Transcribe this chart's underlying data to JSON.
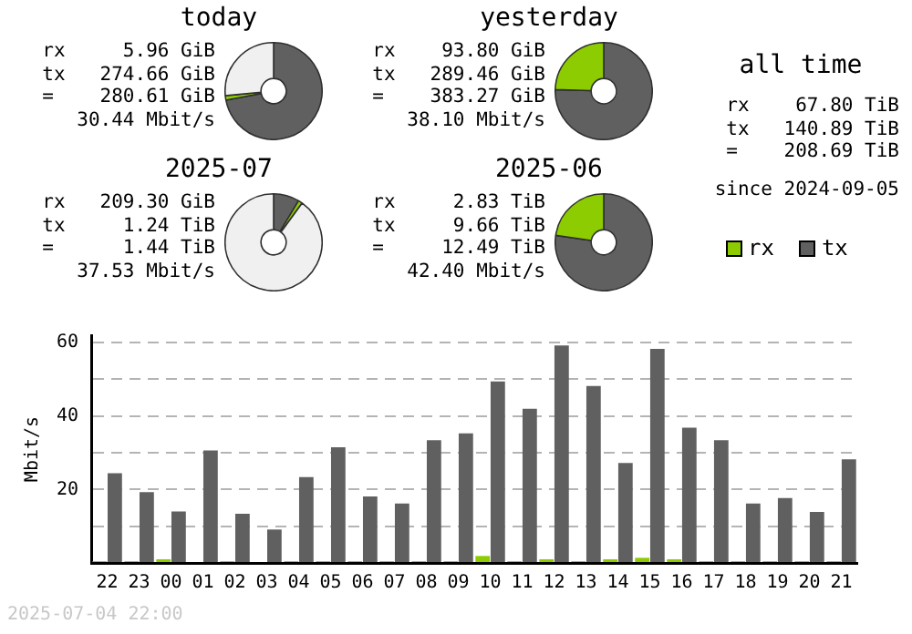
{
  "chart_data": [
    {
      "type": "donut",
      "title": "today",
      "categories": [
        null,
        null,
        null
      ],
      "values": [
        72.0,
        1.5,
        26.5
      ],
      "colors": [
        "#606060",
        "#8ccc00",
        "#f0f0f0"
      ],
      "annotations": [
        "rx     5.96 GiB",
        "tx   274.66 GiB",
        "=    280.61 GiB",
        "30.44 Mbit/s"
      ]
    },
    {
      "type": "donut",
      "title": "yesterday",
      "categories": [
        null,
        null,
        null
      ],
      "values": [
        75.5,
        24.5,
        0
      ],
      "colors": [
        "#606060",
        "#8ccc00",
        "#f0f0f0"
      ],
      "annotations": [
        "rx    93.80 GiB",
        "tx   289.46 GiB",
        "=    383.27 GiB",
        "38.10 Mbit/s"
      ]
    },
    {
      "type": "donut",
      "title": "2025-07",
      "categories": [
        null,
        null,
        null
      ],
      "values": [
        8.6,
        1.4,
        90
      ],
      "colors": [
        "#606060",
        "#8ccc00",
        "#f0f0f0"
      ],
      "annotations": [
        "rx   209.30 GiB",
        "tx     1.24 TiB",
        "=      1.44 TiB",
        "37.53 Mbit/s"
      ]
    },
    {
      "type": "donut",
      "title": "2025-06",
      "categories": [
        null,
        null,
        null
      ],
      "values": [
        77.3,
        22.7,
        0
      ],
      "colors": [
        "#606060",
        "#8ccc00",
        "#f0f0f0"
      ],
      "annotations": [
        "rx     2.83 TiB",
        "tx     9.66 TiB",
        "=     12.49 TiB",
        "42.40 Mbit/s"
      ]
    },
    {
      "type": "other",
      "title": "all time",
      "annotations": [
        "rx    67.80 TiB",
        "tx   140.89 TiB",
        "=    208.69 TiB",
        "since 2024-09-05"
      ]
    },
    {
      "type": "bar",
      "ylabel": "Mbit/s",
      "categories": [
        "22",
        "23",
        "00",
        "01",
        "02",
        "03",
        "04",
        "05",
        "06",
        "07",
        "08",
        "09",
        "10",
        "11",
        "12",
        "13",
        "14",
        "15",
        "16",
        "17",
        "18",
        "19",
        "20",
        "21"
      ],
      "series": [
        {
          "name": "rx",
          "color": "#8ccc00",
          "values": [
            0.5,
            0.5,
            1.0,
            0,
            0.5,
            0,
            0.5,
            0.5,
            0.5,
            0.5,
            0.5,
            0.5,
            1.9,
            0.5,
            1.0,
            0.5,
            1.0,
            1.4,
            1.0,
            0.5,
            0.5,
            0.5,
            0.5,
            0.5
          ]
        },
        {
          "name": "tx",
          "color": "#606060",
          "values": [
            24.4,
            19.3,
            14.0,
            30.6,
            13.4,
            9.1,
            23.4,
            31.5,
            18.1,
            16.2,
            33.4,
            35.3,
            49.4,
            42.0,
            59.2,
            48.2,
            27.2,
            58.3,
            36.8,
            33.4,
            16.2,
            17.7,
            13.9,
            28.2
          ]
        }
      ],
      "ylim": [
        0,
        62
      ],
      "yticks": [
        {
          "value": 0,
          "label": null
        },
        {
          "value": 10,
          "label": null
        },
        20,
        {
          "value": 30,
          "label": null
        },
        40,
        {
          "value": 50,
          "label": null
        },
        60
      ],
      "grid": "y",
      "legend": "top right",
      "annotations": [
        "2025-07-04 22:00"
      ]
    }
  ]
}
